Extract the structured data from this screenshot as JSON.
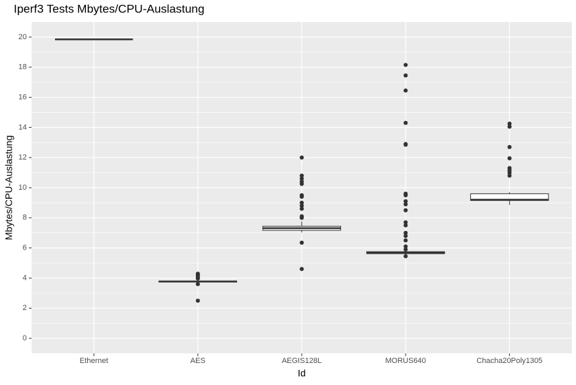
{
  "chart_data": {
    "type": "box",
    "title": "Iperf3 Tests Mbytes/CPU-Auslastung",
    "x_label": "Id",
    "y_label": "Mbytes/CPU-Auslastung",
    "categories": [
      "Ethernet",
      "AES",
      "AEGIS128L",
      "MORUS640",
      "Chacha20Poly1305"
    ],
    "boxes": [
      {
        "min": 19.85,
        "q1": 19.85,
        "median": 19.85,
        "q3": 19.85,
        "max": 19.85,
        "outliers": []
      },
      {
        "min": 3.7,
        "q1": 3.74,
        "median": 3.77,
        "q3": 3.8,
        "max": 3.85,
        "outliers": [
          4.29,
          4.2,
          4.16,
          4.05,
          3.97,
          3.6,
          2.5
        ]
      },
      {
        "min": 7.03,
        "q1": 7.17,
        "median": 7.31,
        "q3": 7.44,
        "max": 7.76,
        "outliers": [
          12.0,
          10.8,
          10.6,
          10.4,
          10.25,
          9.5,
          9.4,
          9.0,
          8.8,
          8.6,
          8.1,
          8.0,
          6.35,
          4.6
        ]
      },
      {
        "min": 5.55,
        "q1": 5.62,
        "median": 5.68,
        "q3": 5.75,
        "max": 5.8,
        "outliers": [
          18.15,
          17.45,
          16.45,
          14.3,
          12.9,
          12.85,
          9.6,
          9.5,
          9.1,
          8.9,
          8.5,
          7.7,
          7.5,
          7.0,
          6.8,
          6.5,
          6.1,
          5.9,
          5.45
        ]
      },
      {
        "min": 8.85,
        "q1": 9.15,
        "median": 9.2,
        "q3": 9.6,
        "max": 9.7,
        "outliers": [
          14.25,
          14.05,
          12.7,
          11.95,
          11.3,
          11.15,
          11.0,
          10.8
        ]
      }
    ],
    "ylim": [
      -1,
      21
    ],
    "yticks": [
      0,
      2,
      4,
      6,
      8,
      10,
      12,
      14,
      16,
      18,
      20
    ],
    "grid": true,
    "box_fill": "#ffffff",
    "color": "#333333",
    "panel_color": "#ebebeb"
  }
}
